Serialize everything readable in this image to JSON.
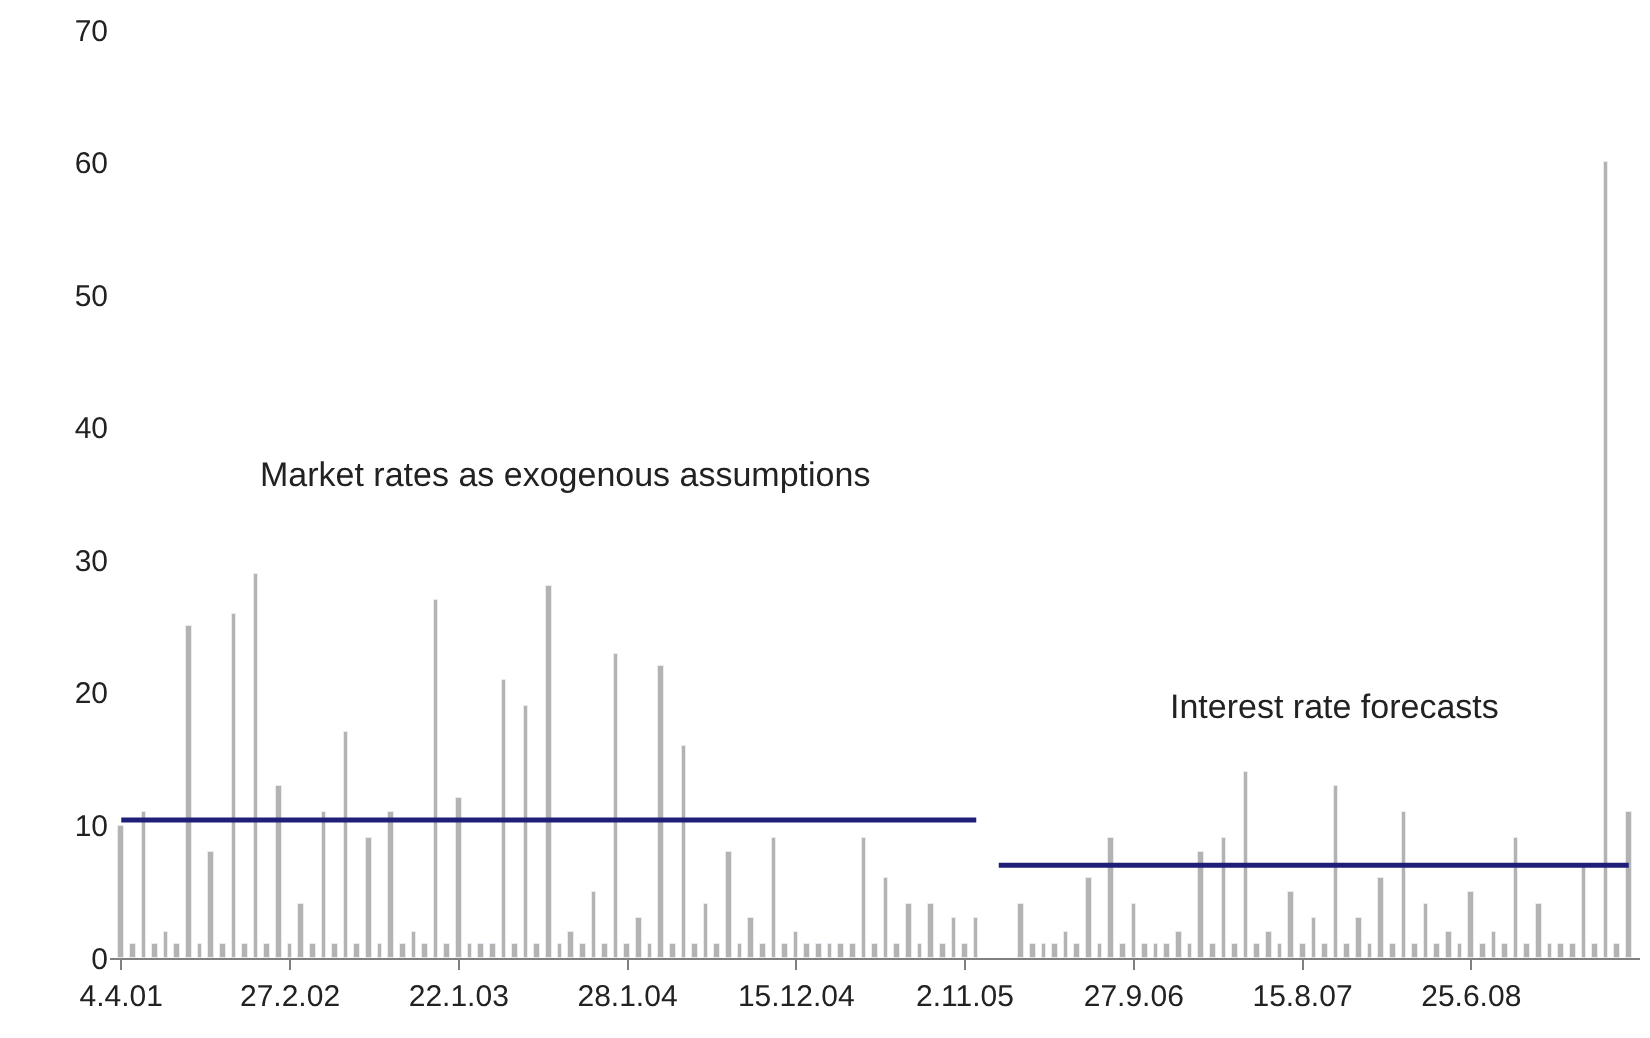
{
  "chart_data": {
    "type": "bar",
    "categories": [
      "4.4.01",
      null,
      null,
      null,
      null,
      null,
      null,
      null,
      null,
      null,
      null,
      null,
      null,
      null,
      null,
      "27.2.02",
      null,
      null,
      null,
      null,
      null,
      null,
      null,
      null,
      null,
      null,
      null,
      null,
      null,
      null,
      "22.1.03",
      null,
      null,
      null,
      null,
      null,
      null,
      null,
      null,
      null,
      null,
      null,
      null,
      null,
      null,
      "28.1.04",
      null,
      null,
      null,
      null,
      null,
      null,
      null,
      null,
      null,
      null,
      null,
      null,
      null,
      null,
      "15.12.04",
      null,
      null,
      null,
      null,
      null,
      null,
      null,
      null,
      null,
      null,
      null,
      null,
      null,
      null,
      "2.11.05",
      null,
      null,
      null,
      null,
      null,
      null,
      null,
      null,
      null,
      null,
      null,
      null,
      null,
      null,
      "27.9.06",
      null,
      null,
      null,
      null,
      null,
      null,
      null,
      null,
      null,
      null,
      null,
      null,
      null,
      null,
      "15.8.07",
      null,
      null,
      null,
      null,
      null,
      null,
      null,
      null,
      null,
      null,
      null,
      null,
      null,
      null,
      "25.6.08",
      null,
      null,
      null,
      null,
      null,
      null,
      null,
      null,
      null,
      null,
      null,
      null,
      null,
      null
    ],
    "series": [
      {
        "color": "#b3b3b3",
        "values": [
          10,
          1,
          11,
          1,
          2,
          1,
          25,
          1,
          8,
          1,
          26,
          1,
          29,
          1,
          13,
          1,
          4,
          1,
          11,
          1,
          17,
          1,
          9,
          1,
          11,
          1,
          2,
          1,
          27,
          1,
          12,
          1,
          1,
          1,
          21,
          1,
          19,
          1,
          28,
          1,
          2,
          1,
          5,
          1,
          23,
          1,
          3,
          1,
          22,
          1,
          16,
          1,
          4,
          1,
          8,
          1,
          3,
          1,
          9,
          1,
          2,
          1,
          1,
          1,
          1,
          1,
          9,
          1,
          6,
          1,
          4,
          1,
          4,
          1,
          3,
          1,
          3,
          null,
          null,
          null,
          4,
          1,
          1,
          1,
          2,
          1,
          6,
          1,
          9,
          1,
          4,
          1,
          1,
          1,
          2,
          1,
          8,
          1,
          9,
          1,
          14,
          1,
          2,
          1,
          5,
          1,
          3,
          1,
          13,
          1,
          3,
          1,
          6,
          1,
          11,
          1,
          4,
          1,
          2,
          1,
          5,
          1,
          2,
          1,
          9,
          1,
          4,
          1,
          1,
          1,
          7,
          1,
          60,
          1,
          11
        ]
      },
      {
        "type": "line",
        "color": "#1f1f7a",
        "values": [
          10.4,
          10.4,
          10.4,
          10.4,
          10.4,
          10.4,
          10.4,
          10.4,
          10.4,
          10.4,
          10.4,
          10.4,
          10.4,
          10.4,
          10.4,
          10.4,
          10.4,
          10.4,
          10.4,
          10.4,
          10.4,
          10.4,
          10.4,
          10.4,
          10.4,
          10.4,
          10.4,
          10.4,
          10.4,
          10.4,
          10.4,
          10.4,
          10.4,
          10.4,
          10.4,
          10.4,
          10.4,
          10.4,
          10.4,
          10.4,
          10.4,
          10.4,
          10.4,
          10.4,
          10.4,
          10.4,
          10.4,
          10.4,
          10.4,
          10.4,
          10.4,
          10.4,
          10.4,
          10.4,
          10.4,
          10.4,
          10.4,
          10.4,
          10.4,
          10.4,
          10.4,
          10.4,
          10.4,
          10.4,
          10.4,
          10.4,
          10.4,
          10.4,
          10.4,
          10.4,
          10.4,
          10.4,
          10.4,
          10.4,
          10.4,
          10.4,
          10.4,
          null,
          7,
          7,
          7,
          7,
          7,
          7,
          7,
          7,
          7,
          7,
          7,
          7,
          7,
          7,
          7,
          7,
          7,
          7,
          7,
          7,
          7,
          7,
          7,
          7,
          7,
          7,
          7,
          7,
          7,
          7,
          7,
          7,
          7,
          7,
          7,
          7,
          7,
          7,
          7,
          7,
          7,
          7,
          7,
          7,
          7,
          7,
          7,
          7,
          7,
          7,
          7,
          7,
          7,
          7,
          7,
          7,
          7
        ]
      }
    ],
    "ylim": [
      0,
      70
    ],
    "yticks": [
      0,
      10,
      20,
      30,
      40,
      50,
      60,
      70
    ],
    "annotations": [
      "Market rates as exogenous assumptions",
      "Interest rate forecasts"
    ]
  }
}
